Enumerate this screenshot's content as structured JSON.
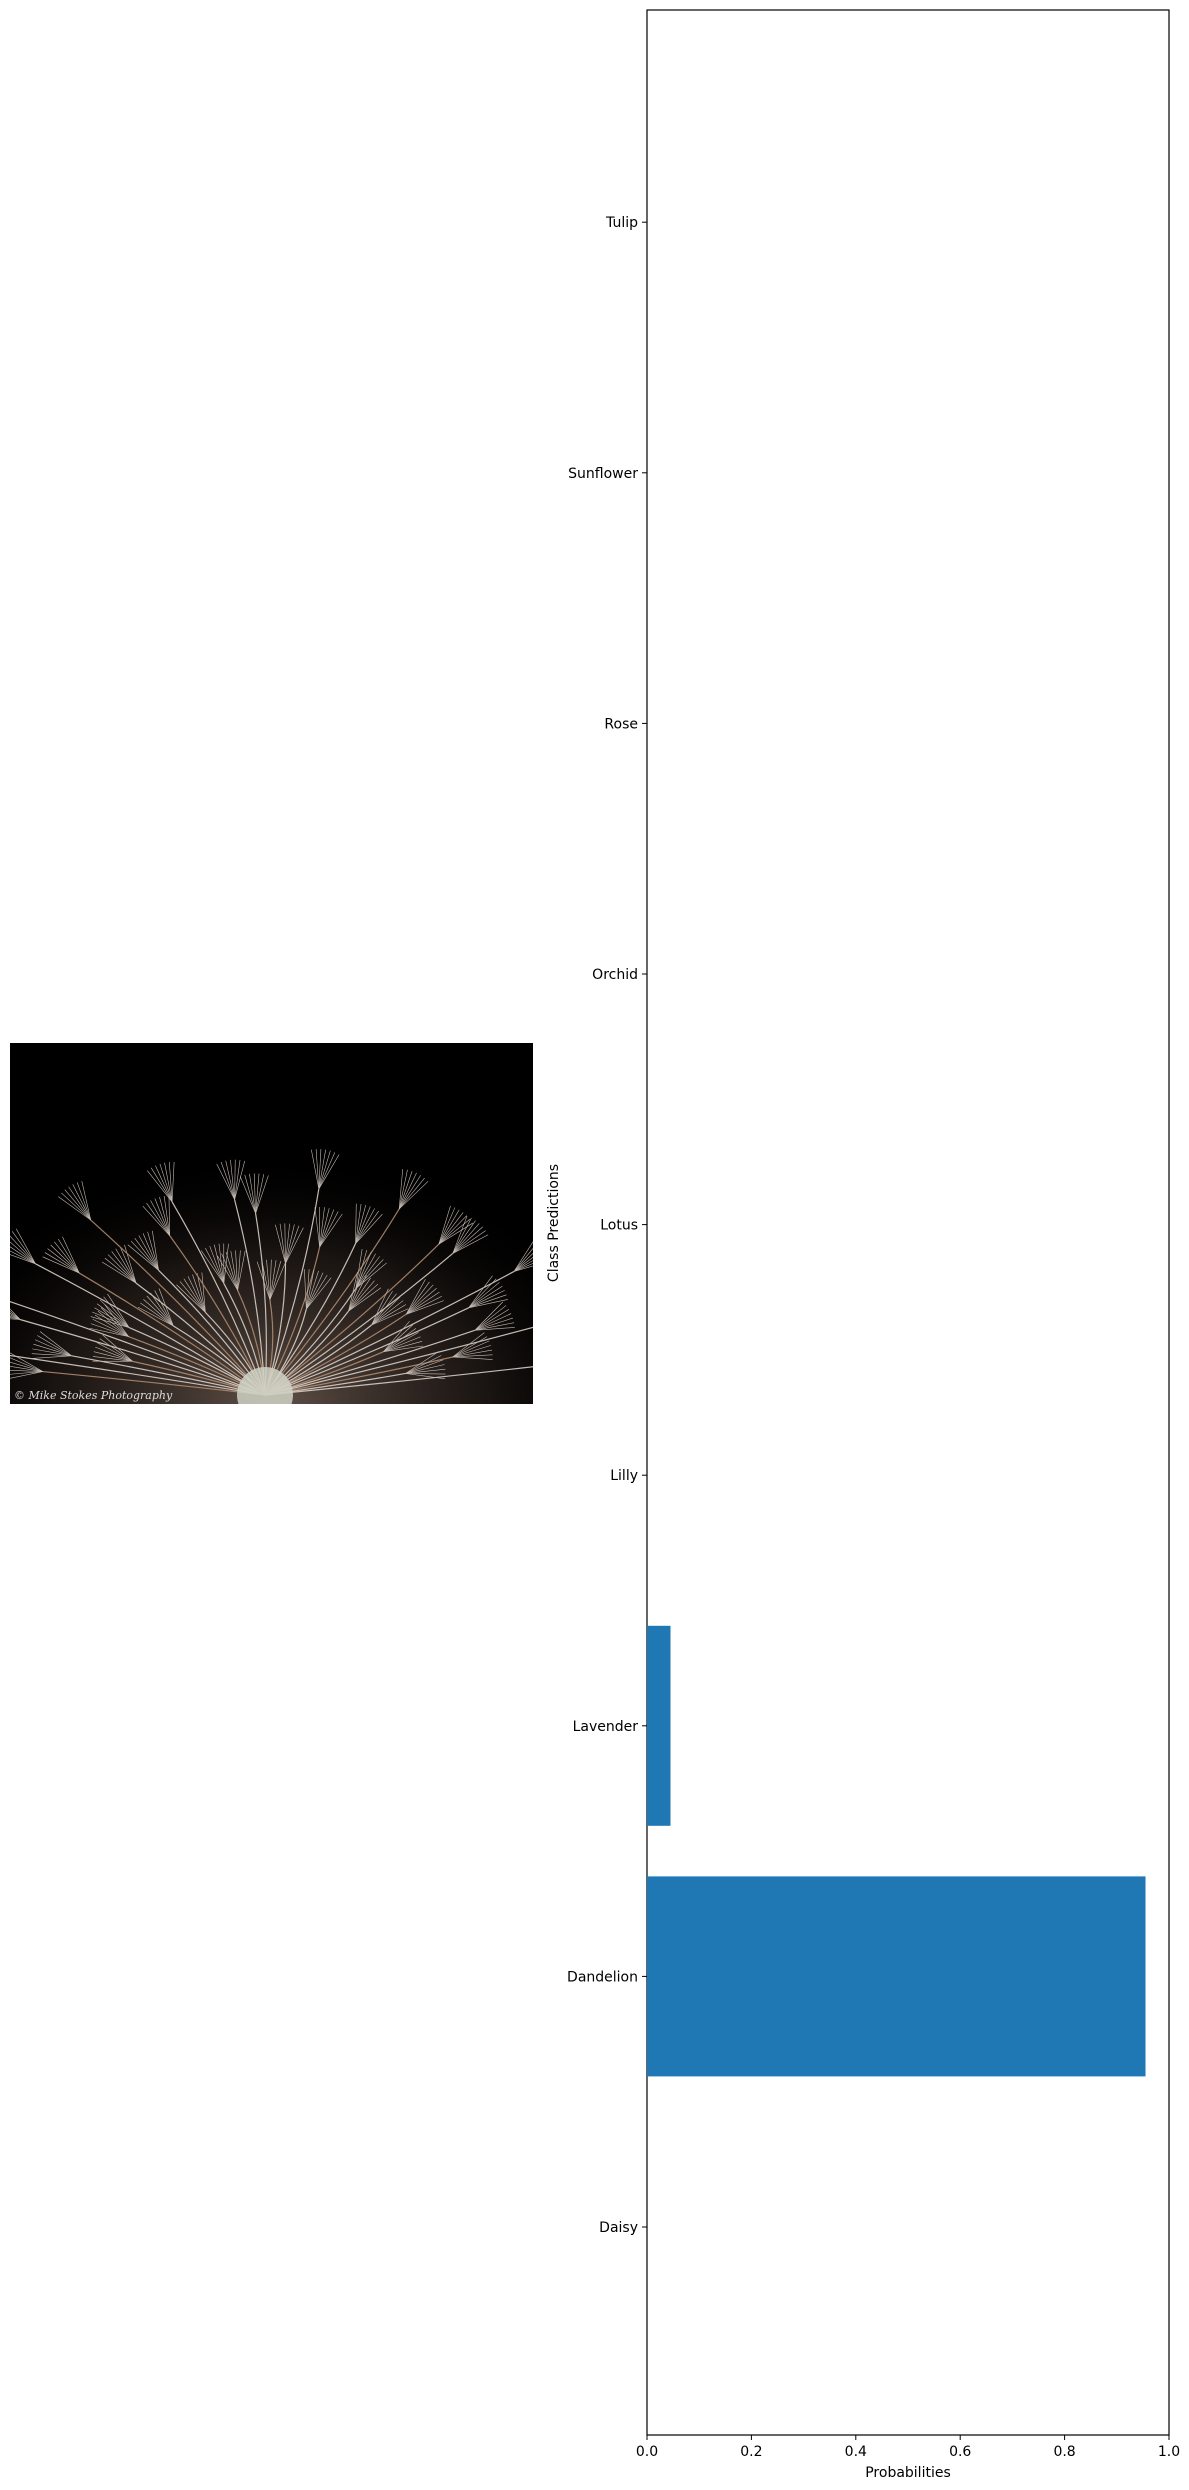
{
  "image_panel": {
    "description_icon": "dandelion-seed-head-photo",
    "watermark": "© Mike Stokes Photography"
  },
  "chart_data": {
    "type": "bar",
    "orientation": "horizontal",
    "categories": [
      "Daisy",
      "Dandelion",
      "Lavender",
      "Lilly",
      "Lotus",
      "Orchid",
      "Rose",
      "Sunflower",
      "Tulip"
    ],
    "values": [
      0.0,
      0.955,
      0.045,
      0.0,
      0.0,
      0.0,
      0.0,
      0.0,
      0.0
    ],
    "xlabel": "Probabilities",
    "ylabel": "Class Predictions",
    "xlim": [
      0,
      1.0
    ],
    "xticks": [
      "0.0",
      "0.2",
      "0.4",
      "0.6",
      "0.8",
      "1.0"
    ],
    "bar_color": "#1f77b4",
    "grid": false
  }
}
